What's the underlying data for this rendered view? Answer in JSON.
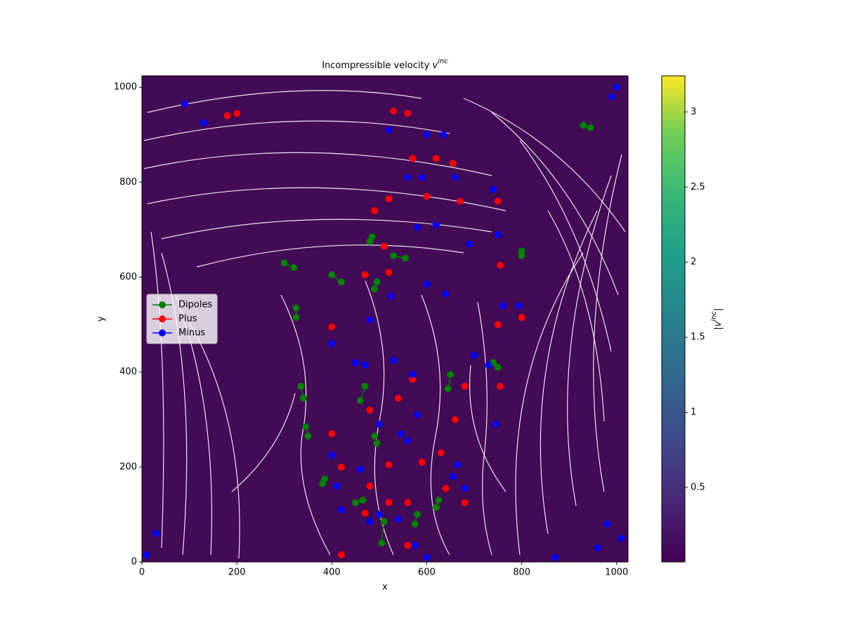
{
  "chart_data": {
    "type": "scatter",
    "title": "Incompressible velocity ",
    "title_symbol": "v",
    "title_superscript": "inc",
    "x_label": "x",
    "y_label": "y",
    "xlim": [
      0,
      1024
    ],
    "ylim": [
      0,
      1024
    ],
    "xticks": [
      0,
      200,
      400,
      600,
      800,
      1000
    ],
    "yticks": [
      0,
      200,
      400,
      600,
      800,
      1000
    ],
    "legend": "center left",
    "colorbar": {
      "label_open": "|",
      "label_symbol": "v",
      "label_superscript": "inc",
      "label_close": "|",
      "cmap": "viridis",
      "lim": [
        0.005,
        3.24
      ],
      "ticks": [
        0.5,
        1.0,
        1.5,
        2.0,
        2.5,
        3.0
      ]
    },
    "series": [
      {
        "name": "Dipoles",
        "color": "#008000",
        "connect_pairs": true,
        "x": [
          325,
          325,
          300,
          320,
          400,
          420,
          335,
          340,
          345,
          350,
          460,
          470,
          490,
          495,
          510,
          505,
          580,
          575,
          650,
          645,
          740,
          750,
          800,
          800,
          620,
          625,
          380,
          385,
          450,
          465,
          930,
          945,
          490,
          495,
          485,
          480,
          555,
          530
        ],
        "y": [
          535,
          515,
          630,
          620,
          605,
          590,
          370,
          345,
          285,
          265,
          340,
          370,
          265,
          250,
          85,
          40,
          100,
          80,
          395,
          365,
          420,
          410,
          655,
          645,
          115,
          130,
          165,
          175,
          125,
          130,
          920,
          915,
          575,
          590,
          685,
          675,
          640,
          645
        ]
      },
      {
        "name": "Plus",
        "color": "#ff0000",
        "connect_pairs": false,
        "x": [
          400,
          400,
          470,
          520,
          480,
          510,
          520,
          490,
          600,
          670,
          750,
          755,
          750,
          800,
          680,
          755,
          660,
          540,
          570,
          420,
          480,
          470,
          520,
          590,
          630,
          680,
          640,
          560,
          520,
          530,
          560,
          570,
          620,
          655,
          420,
          560,
          180,
          200
        ],
        "y": [
          495,
          270,
          605,
          610,
          320,
          665,
          765,
          740,
          770,
          760,
          760,
          625,
          500,
          515,
          370,
          370,
          300,
          345,
          385,
          200,
          160,
          103,
          205,
          210,
          230,
          125,
          155,
          125,
          125,
          950,
          945,
          850,
          850,
          840,
          15,
          35,
          940,
          945
        ]
      },
      {
        "name": "Minus",
        "color": "#0000ff",
        "connect_pairs": false,
        "x": [
          400,
          400,
          480,
          525,
          450,
          470,
          530,
          570,
          580,
          560,
          545,
          500,
          460,
          410,
          420,
          480,
          500,
          540,
          575,
          600,
          655,
          665,
          680,
          700,
          730,
          745,
          760,
          795,
          600,
          640,
          580,
          620,
          690,
          750,
          740,
          560,
          590,
          660,
          600,
          635,
          520,
          130,
          90,
          30,
          10,
          990,
          1000,
          980,
          1010,
          960,
          870
        ],
        "y": [
          460,
          225,
          510,
          560,
          420,
          415,
          425,
          395,
          310,
          255,
          270,
          290,
          195,
          160,
          110,
          85,
          100,
          90,
          35,
          10,
          180,
          205,
          155,
          435,
          415,
          290,
          540,
          540,
          585,
          565,
          705,
          710,
          670,
          690,
          785,
          810,
          810,
          810,
          900,
          900,
          910,
          925,
          965,
          60,
          15,
          980,
          1000,
          80,
          50,
          30,
          10
        ]
      }
    ]
  }
}
